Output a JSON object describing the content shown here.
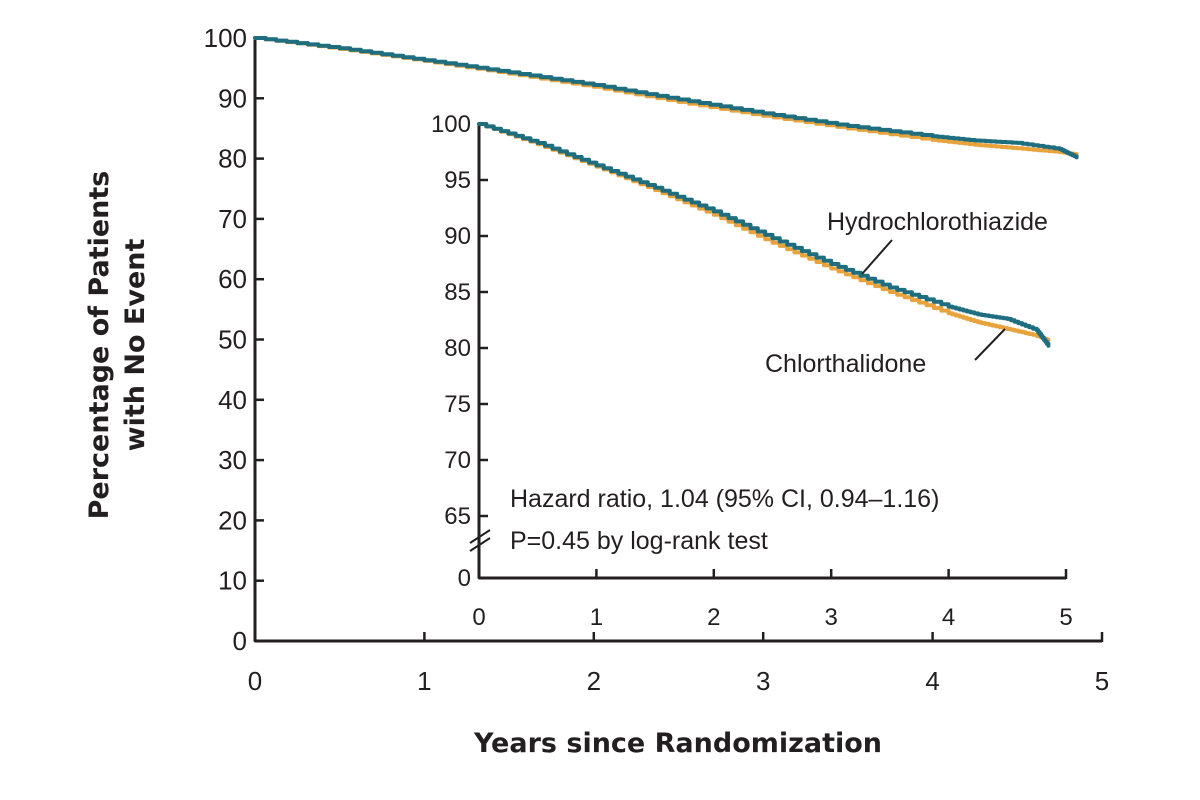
{
  "chart_data": {
    "type": "line",
    "subtype": "kaplan-meier",
    "xlabel": "Years since Randomization",
    "ylabel_line1": "Percentage of Patients",
    "ylabel_line2": "with No Event",
    "main": {
      "xlim": [
        0,
        5
      ],
      "ylim": [
        0,
        100
      ],
      "x_ticks": [
        "0",
        "1",
        "2",
        "3",
        "4",
        "5"
      ],
      "y_ticks": [
        "0",
        "10",
        "20",
        "30",
        "40",
        "50",
        "60",
        "70",
        "80",
        "90",
        "100"
      ]
    },
    "inset": {
      "xlim": [
        0,
        5
      ],
      "ylim": [
        65,
        100
      ],
      "axis_break": true,
      "x_ticks": [
        "0",
        "1",
        "2",
        "3",
        "4",
        "5"
      ],
      "y_ticks": [
        "0",
        "65",
        "70",
        "75",
        "80",
        "85",
        "90",
        "95",
        "100"
      ]
    },
    "series": [
      {
        "name": "Chlorthalidone",
        "color": "#e8a33d",
        "x": [
          0,
          0.5,
          1,
          1.5,
          2,
          2.5,
          3,
          3.5,
          4,
          4.25,
          4.5,
          4.75,
          4.85
        ],
        "y": [
          100,
          98.2,
          96.2,
          94.1,
          91.9,
          89.4,
          87.1,
          85.0,
          83.1,
          82.3,
          81.7,
          81.1,
          80.7
        ]
      },
      {
        "name": "Hydrochlorothiazide",
        "color": "#1f6e80",
        "x": [
          0,
          0.5,
          1,
          1.5,
          2,
          2.5,
          3,
          3.5,
          4,
          4.25,
          4.5,
          4.75,
          4.85
        ],
        "y": [
          100,
          98.3,
          96.3,
          94.3,
          92.2,
          89.8,
          87.5,
          85.4,
          83.7,
          83.0,
          82.6,
          81.6,
          80.2
        ]
      }
    ],
    "annotations": {
      "hazard_ratio": "Hazard ratio, 1.04 (95% CI, 0.94–1.16)",
      "p_value": "P=0.45 by log-rank test"
    },
    "grid": false
  }
}
